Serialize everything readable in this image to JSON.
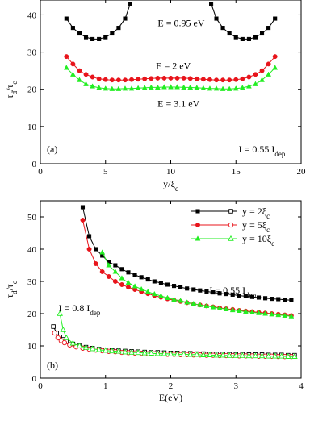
{
  "chart_data": [
    {
      "type": "line",
      "panel_label": "(a)",
      "xlabel": "y/ξ",
      "xlabel_sub": "c",
      "ylabel": "τ",
      "ylabel_sub1": "d",
      "ylabel_mid": "/τ",
      "ylabel_sub2": "c",
      "xlim": [
        0,
        20
      ],
      "ylim": [
        0,
        44
      ],
      "xticks": [
        0,
        5,
        10,
        15,
        20
      ],
      "yticks": [
        0,
        10,
        20,
        30,
        40
      ],
      "annotations": [
        {
          "text": "E = 0.95 eV",
          "x": 10.8,
          "y": 37.0
        },
        {
          "text": "E = 2 eV",
          "x": 10.2,
          "y": 25.5
        },
        {
          "text": "E = 3.1 eV",
          "x": 10.6,
          "y": 15.3
        },
        {
          "text": "I = 0.55 I",
          "sub": "dep",
          "x": 17.0,
          "y": 3.0
        }
      ],
      "series": [
        {
          "label": "E = 0.95 eV",
          "color": "#000000",
          "marker": "square",
          "segments": [
            {
              "x": [
                2.0,
                2.5,
                3.0,
                3.5,
                4.0,
                4.5,
                5.0,
                5.5,
                6.0,
                6.5,
                6.9
              ],
              "y": [
                39.0,
                36.5,
                35.0,
                34.0,
                33.5,
                33.5,
                34.0,
                35.0,
                36.5,
                39.0,
                43.0
              ]
            },
            {
              "x": [
                13.1,
                13.5,
                14.0,
                14.5,
                15.0,
                15.5,
                16.0,
                16.5,
                17.0,
                17.5,
                18.0
              ],
              "y": [
                43.0,
                39.0,
                36.5,
                35.0,
                34.0,
                33.5,
                33.5,
                34.0,
                35.0,
                36.5,
                39.0
              ]
            }
          ]
        },
        {
          "label": "E = 2 eV",
          "color": "#e8141b",
          "marker": "circle",
          "segments": [
            {
              "x": [
                2.0,
                2.5,
                3.0,
                3.5,
                4.0,
                4.5,
                5.0,
                5.5,
                6.0,
                6.5,
                7.0,
                7.5,
                8.0,
                8.5,
                9.0,
                9.5,
                10.0,
                10.5,
                11.0,
                11.5,
                12.0,
                12.5,
                13.0,
                13.5,
                14.0,
                14.5,
                15.0,
                15.5,
                16.0,
                16.5,
                17.0,
                17.5,
                18.0
              ],
              "y": [
                28.8,
                26.8,
                25.0,
                24.0,
                23.3,
                22.8,
                22.6,
                22.5,
                22.5,
                22.5,
                22.6,
                22.7,
                22.8,
                22.9,
                23.0,
                23.0,
                23.0,
                23.0,
                23.0,
                22.9,
                22.8,
                22.7,
                22.6,
                22.5,
                22.5,
                22.5,
                22.6,
                22.8,
                23.3,
                24.0,
                25.0,
                26.8,
                28.8
              ]
            }
          ]
        },
        {
          "label": "E = 3.1 eV",
          "color": "#22ee22",
          "marker": "triangle",
          "segments": [
            {
              "x": [
                2.0,
                2.5,
                3.0,
                3.5,
                4.0,
                4.5,
                5.0,
                5.5,
                6.0,
                6.5,
                7.0,
                7.5,
                8.0,
                8.5,
                9.0,
                9.5,
                10.0,
                10.5,
                11.0,
                11.5,
                12.0,
                12.5,
                13.0,
                13.5,
                14.0,
                14.5,
                15.0,
                15.5,
                16.0,
                16.5,
                17.0,
                17.5,
                18.0
              ],
              "y": [
                25.8,
                24.0,
                22.5,
                21.4,
                20.8,
                20.4,
                20.2,
                20.1,
                20.1,
                20.2,
                20.2,
                20.3,
                20.4,
                20.5,
                20.5,
                20.6,
                20.6,
                20.6,
                20.5,
                20.5,
                20.4,
                20.3,
                20.2,
                20.2,
                20.1,
                20.1,
                20.2,
                20.4,
                20.8,
                21.4,
                22.5,
                24.0,
                25.8
              ]
            }
          ]
        }
      ]
    },
    {
      "type": "line",
      "panel_label": "(b)",
      "xlabel": "E(eV)",
      "ylabel": "τ",
      "ylabel_sub1": "d",
      "ylabel_mid": "/τ",
      "ylabel_sub2": "c",
      "xlim": [
        0,
        4
      ],
      "ylim": [
        0,
        55
      ],
      "xticks": [
        0,
        1,
        2,
        3,
        4
      ],
      "yticks": [
        0,
        10,
        20,
        30,
        40,
        50
      ],
      "annotations": [
        {
          "text": "I = 0.55 I",
          "sub": "dep",
          "x": 2.95,
          "y": 26.2
        },
        {
          "text": "I = 0.8 I",
          "sub": "dep",
          "x": 0.6,
          "y": 20.7
        }
      ],
      "legend": {
        "position": "top-right",
        "entries": [
          {
            "text": "y = 2ξ",
            "sub": "c",
            "color": "#000000",
            "marker": "square"
          },
          {
            "text": "y = 5ξ",
            "sub": "c",
            "color": "#e8141b",
            "marker": "circle"
          },
          {
            "text": "y = 10ξ",
            "sub": "c",
            "color": "#22ee22",
            "marker": "triangle"
          }
        ]
      },
      "series": [
        {
          "label": "y = 2ξc, I = 0.55 Idep",
          "color": "#000000",
          "marker": "square",
          "filled": true,
          "x": [
            0.65,
            0.75,
            0.85,
            0.95,
            1.05,
            1.15,
            1.25,
            1.35,
            1.45,
            1.55,
            1.65,
            1.75,
            1.85,
            1.95,
            2.05,
            2.15,
            2.25,
            2.35,
            2.45,
            2.55,
            2.65,
            2.75,
            2.85,
            2.95,
            3.05,
            3.15,
            3.25,
            3.35,
            3.45,
            3.55,
            3.65,
            3.75,
            3.85
          ],
          "y": [
            53.0,
            44.0,
            40.0,
            38.0,
            36.0,
            35.0,
            33.8,
            32.8,
            32.0,
            31.3,
            30.6,
            30.0,
            29.5,
            29.0,
            28.6,
            28.2,
            27.8,
            27.5,
            27.2,
            26.9,
            26.6,
            26.3,
            26.1,
            25.9,
            25.6,
            25.4,
            25.2,
            25.0,
            24.8,
            24.6,
            24.5,
            24.3,
            24.2
          ]
        },
        {
          "label": "y = 5ξc, I = 0.55 Idep",
          "color": "#e8141b",
          "marker": "circle",
          "filled": true,
          "x": [
            0.65,
            0.75,
            0.85,
            0.95,
            1.05,
            1.15,
            1.25,
            1.35,
            1.45,
            1.55,
            1.65,
            1.75,
            1.85,
            1.95,
            2.05,
            2.15,
            2.25,
            2.35,
            2.45,
            2.55,
            2.65,
            2.75,
            2.85,
            2.95,
            3.05,
            3.15,
            3.25,
            3.35,
            3.45,
            3.55,
            3.65,
            3.75,
            3.85
          ],
          "y": [
            49.0,
            40.0,
            35.5,
            33.0,
            31.5,
            30.0,
            29.0,
            28.2,
            27.5,
            26.8,
            26.2,
            25.6,
            25.1,
            24.6,
            24.2,
            23.8,
            23.4,
            23.0,
            22.7,
            22.4,
            22.1,
            21.8,
            21.5,
            21.3,
            21.0,
            20.8,
            20.6,
            20.4,
            20.2,
            20.0,
            19.8,
            19.6,
            19.4
          ]
        },
        {
          "label": "y = 10ξc, I = 0.55 Idep",
          "color": "#22ee22",
          "marker": "triangle",
          "filled": true,
          "x": [
            0.95,
            1.05,
            1.15,
            1.25,
            1.35,
            1.45,
            1.55,
            1.65,
            1.75,
            1.85,
            1.95,
            2.05,
            2.15,
            2.25,
            2.35,
            2.45,
            2.55,
            2.65,
            2.75,
            2.85,
            2.95,
            3.05,
            3.15,
            3.25,
            3.35,
            3.45,
            3.55,
            3.65,
            3.75,
            3.85
          ],
          "y": [
            39.0,
            35.0,
            33.0,
            31.0,
            29.6,
            28.5,
            27.6,
            26.8,
            26.1,
            25.5,
            24.9,
            24.4,
            24.0,
            23.5,
            23.1,
            22.7,
            22.4,
            22.0,
            21.7,
            21.4,
            21.1,
            20.9,
            20.6,
            20.4,
            20.2,
            20.0,
            19.8,
            19.6,
            19.4,
            19.2
          ]
        },
        {
          "label": "y = 2ξc, I = 0.8 Idep",
          "color": "#000000",
          "marker": "square",
          "filled": false,
          "x": [
            0.2,
            0.25,
            0.3,
            0.35,
            0.4,
            0.5,
            0.6,
            0.7,
            0.8,
            0.9,
            1.0,
            1.1,
            1.2,
            1.3,
            1.4,
            1.5,
            1.6,
            1.7,
            1.8,
            1.9,
            2.0,
            2.1,
            2.2,
            2.3,
            2.4,
            2.5,
            2.6,
            2.7,
            2.8,
            2.9,
            3.0,
            3.1,
            3.2,
            3.3,
            3.4,
            3.5,
            3.6,
            3.7,
            3.8,
            3.9
          ],
          "y": [
            16.0,
            14.0,
            12.8,
            12.0,
            11.4,
            10.6,
            10.0,
            9.6,
            9.3,
            9.0,
            8.8,
            8.6,
            8.5,
            8.4,
            8.3,
            8.2,
            8.1,
            8.0,
            8.0,
            7.9,
            7.8,
            7.8,
            7.7,
            7.7,
            7.6,
            7.6,
            7.5,
            7.5,
            7.5,
            7.4,
            7.4,
            7.4,
            7.3,
            7.3,
            7.3,
            7.2,
            7.2,
            7.2,
            7.1,
            7.1
          ]
        },
        {
          "label": "y = 5ξc, I = 0.8 Idep",
          "color": "#e8141b",
          "marker": "circle",
          "filled": false,
          "x": [
            0.22,
            0.27,
            0.32,
            0.37,
            0.45,
            0.55,
            0.65,
            0.75,
            0.85,
            0.95,
            1.05,
            1.15,
            1.25,
            1.35,
            1.45,
            1.55,
            1.65,
            1.75,
            1.85,
            1.95,
            2.05,
            2.15,
            2.25,
            2.35,
            2.45,
            2.55,
            2.65,
            2.75,
            2.85,
            2.95,
            3.05,
            3.15,
            3.25,
            3.35,
            3.45,
            3.55,
            3.65,
            3.75,
            3.85
          ],
          "y": [
            14.0,
            12.5,
            11.6,
            11.0,
            10.3,
            9.7,
            9.3,
            9.0,
            8.7,
            8.5,
            8.3,
            8.2,
            8.0,
            7.9,
            7.8,
            7.7,
            7.6,
            7.6,
            7.5,
            7.4,
            7.4,
            7.3,
            7.3,
            7.2,
            7.2,
            7.1,
            7.1,
            7.0,
            7.0,
            7.0,
            6.9,
            6.9,
            6.9,
            6.8,
            6.8,
            6.8,
            6.7,
            6.7,
            6.7
          ]
        },
        {
          "label": "y = 10ξc, I = 0.8 Idep",
          "color": "#22ee22",
          "marker": "triangle",
          "filled": false,
          "x": [
            0.3,
            0.35,
            0.4,
            0.5,
            0.6,
            0.7,
            0.8,
            0.9,
            1.0,
            1.1,
            1.2,
            1.3,
            1.4,
            1.5,
            1.6,
            1.7,
            1.8,
            1.9,
            2.0,
            2.1,
            2.2,
            2.3,
            2.4,
            2.5,
            2.6,
            2.7,
            2.8,
            2.9,
            3.0,
            3.1,
            3.2,
            3.3,
            3.4,
            3.5,
            3.6,
            3.7,
            3.8,
            3.9
          ],
          "y": [
            20.0,
            15.0,
            12.5,
            10.8,
            10.0,
            9.5,
            9.1,
            8.8,
            8.6,
            8.4,
            8.3,
            8.1,
            8.0,
            7.9,
            7.8,
            7.7,
            7.6,
            7.6,
            7.5,
            7.4,
            7.4,
            7.3,
            7.3,
            7.2,
            7.2,
            7.1,
            7.1,
            7.0,
            7.0,
            7.0,
            6.9,
            6.9,
            6.9,
            6.8,
            6.8,
            6.8,
            6.7,
            6.7
          ]
        }
      ]
    }
  ]
}
